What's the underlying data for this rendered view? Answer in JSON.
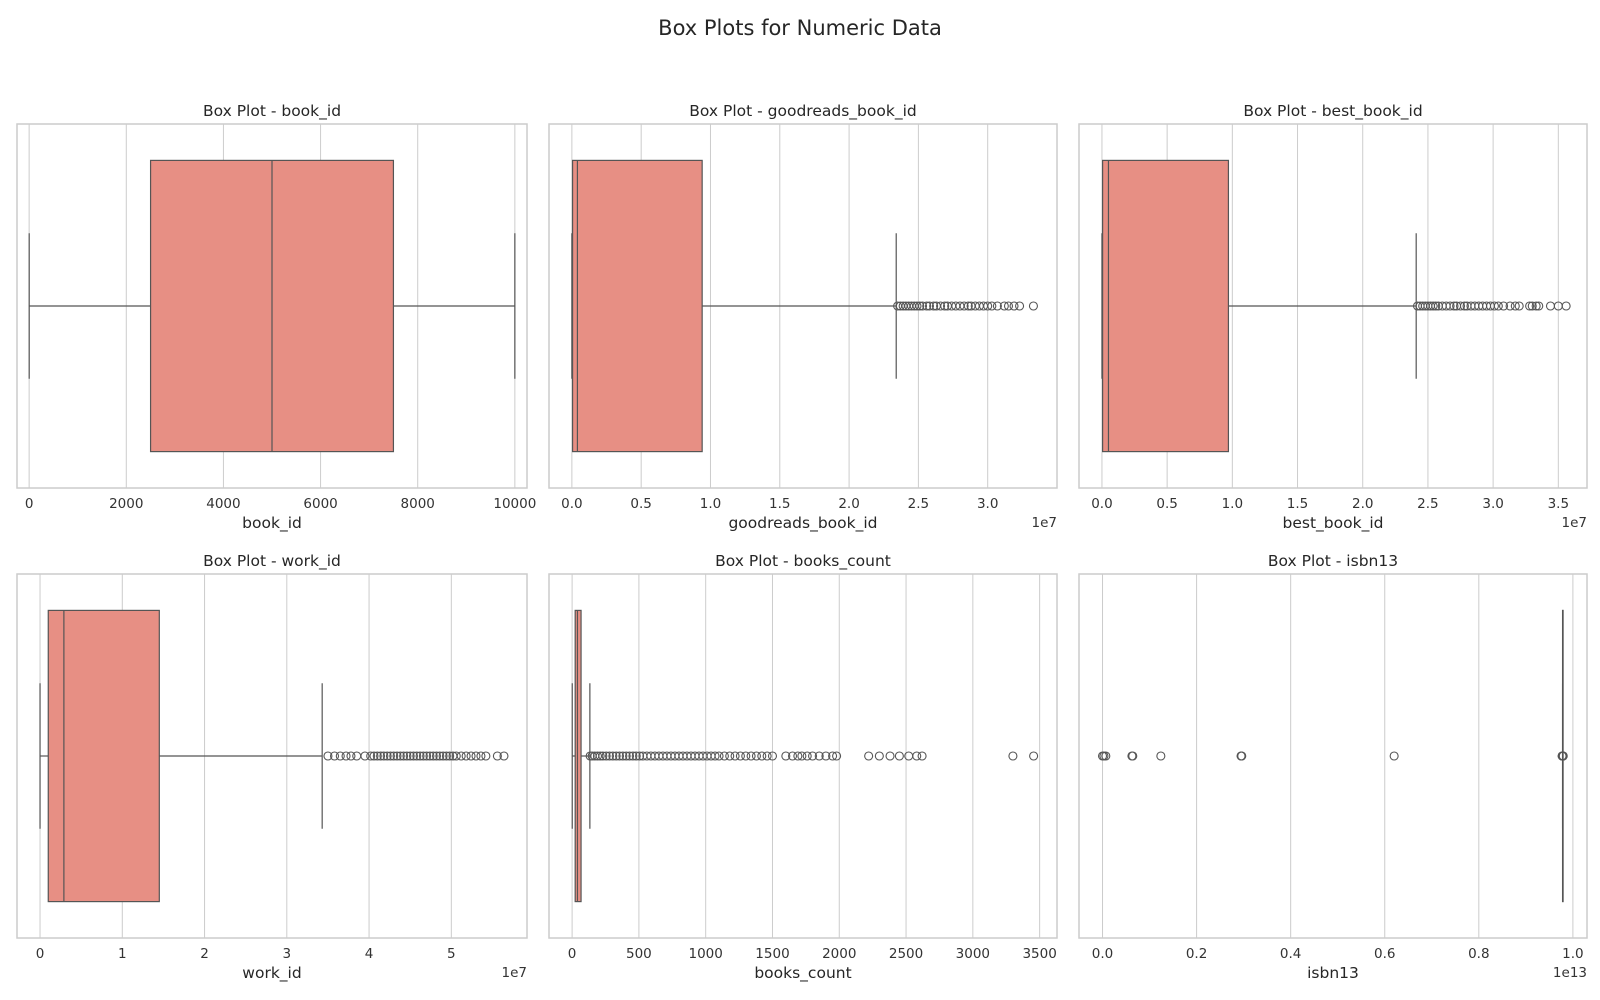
{
  "figure": {
    "title": "Box Plots for Numeric Data"
  },
  "colors": {
    "box_fill": "#e78f84",
    "line": "#555555",
    "grid": "#cccccc",
    "frame": "#cccccc",
    "flier_edge": "#555555"
  },
  "chart_data": [
    {
      "type": "box",
      "title": "Box Plot - book_id",
      "xlabel": "book_id",
      "offset_text": "",
      "xlim": [
        -250,
        10250
      ],
      "ticks": [
        0,
        2000,
        4000,
        6000,
        8000,
        10000
      ],
      "tick_labels": [
        "0",
        "2000",
        "4000",
        "6000",
        "8000",
        "10000"
      ],
      "whisker_low": 1,
      "q1": 2500,
      "median": 5000,
      "q3": 7500,
      "whisker_high": 10000,
      "outliers": []
    },
    {
      "type": "box",
      "title": "Box Plot - goodreads_book_id",
      "xlabel": "goodreads_book_id",
      "offset_text": "1e7",
      "xlim": [
        -0.165,
        3.5
      ],
      "ticks": [
        0,
        0.5,
        1.0,
        1.5,
        2.0,
        2.5,
        3.0
      ],
      "tick_labels": [
        "0.0",
        "0.5",
        "1.0",
        "1.5",
        "2.0",
        "2.5",
        "3.0"
      ],
      "whisker_low": 0.0,
      "q1": 0.005,
      "median": 0.04,
      "q3": 0.94,
      "whisker_high": 2.34,
      "outliers": [
        2.35,
        2.37,
        2.39,
        2.41,
        2.43,
        2.45,
        2.47,
        2.49,
        2.51,
        2.53,
        2.56,
        2.58,
        2.61,
        2.63,
        2.66,
        2.69,
        2.71,
        2.74,
        2.77,
        2.8,
        2.83,
        2.86,
        2.88,
        2.91,
        2.94,
        2.97,
        3.0,
        3.03,
        3.07,
        3.12,
        3.15,
        3.19,
        3.23,
        3.33
      ]
    },
    {
      "type": "box",
      "title": "Box Plot - best_book_id",
      "xlabel": "best_book_id",
      "offset_text": "1e7",
      "xlim": [
        -0.176,
        3.72
      ],
      "ticks": [
        0,
        0.5,
        1.0,
        1.5,
        2.0,
        2.5,
        3.0,
        3.5
      ],
      "tick_labels": [
        "0.0",
        "0.5",
        "1.0",
        "1.5",
        "2.0",
        "2.5",
        "3.0",
        "3.5"
      ],
      "whisker_low": 0.0,
      "q1": 0.005,
      "median": 0.05,
      "q3": 0.97,
      "whisker_high": 2.41,
      "outliers": [
        2.42,
        2.44,
        2.46,
        2.48,
        2.5,
        2.52,
        2.54,
        2.56,
        2.58,
        2.61,
        2.64,
        2.67,
        2.7,
        2.72,
        2.75,
        2.78,
        2.8,
        2.83,
        2.86,
        2.89,
        2.92,
        2.95,
        2.98,
        3.01,
        3.04,
        3.08,
        3.13,
        3.17,
        3.2,
        3.28,
        3.3,
        3.33,
        3.35,
        3.44,
        3.5,
        3.56
      ]
    },
    {
      "type": "box",
      "title": "Box Plot - work_id",
      "xlabel": "work_id",
      "offset_text": "1e7",
      "xlim": [
        -0.28,
        5.92
      ],
      "ticks": [
        0,
        1,
        2,
        3,
        4,
        5
      ],
      "tick_labels": [
        "0",
        "1",
        "2",
        "3",
        "4",
        "5"
      ],
      "whisker_low": 0.0,
      "q1": 0.1,
      "median": 0.29,
      "q3": 1.45,
      "whisker_high": 3.43,
      "outliers": [
        3.5,
        3.58,
        3.65,
        3.72,
        3.78,
        3.85,
        3.95,
        4.02,
        4.06,
        4.1,
        4.14,
        4.18,
        4.22,
        4.26,
        4.3,
        4.34,
        4.38,
        4.42,
        4.46,
        4.5,
        4.54,
        4.58,
        4.62,
        4.66,
        4.7,
        4.74,
        4.78,
        4.82,
        4.86,
        4.9,
        4.94,
        4.98,
        5.02,
        5.06,
        5.12,
        5.18,
        5.24,
        5.3,
        5.36,
        5.42,
        5.56,
        5.64
      ]
    },
    {
      "type": "box",
      "title": "Box Plot - books_count",
      "xlabel": "books_count",
      "offset_text": "",
      "xlim": [
        -173,
        3630
      ],
      "ticks": [
        0,
        500,
        1000,
        1500,
        2000,
        2500,
        3000,
        3500
      ],
      "tick_labels": [
        "0",
        "500",
        "1000",
        "1500",
        "2000",
        "2500",
        "3000",
        "3500"
      ],
      "whisker_low": 1,
      "q1": 23,
      "median": 40,
      "q3": 67,
      "whisker_high": 133,
      "outliers": [
        135,
        150,
        170,
        190,
        210,
        230,
        255,
        280,
        305,
        330,
        355,
        380,
        405,
        430,
        455,
        480,
        505,
        530,
        560,
        590,
        620,
        650,
        680,
        710,
        740,
        770,
        800,
        830,
        860,
        890,
        920,
        950,
        980,
        1010,
        1040,
        1070,
        1100,
        1140,
        1180,
        1220,
        1260,
        1300,
        1340,
        1380,
        1420,
        1460,
        1500,
        1600,
        1650,
        1690,
        1720,
        1760,
        1800,
        1850,
        1900,
        1950,
        1980,
        2220,
        2300,
        2380,
        2450,
        2520,
        2580,
        2620,
        3300,
        3455
      ]
    },
    {
      "type": "box",
      "title": "Box Plot - isbn13",
      "xlabel": "isbn13",
      "offset_text": "1e13",
      "xlim": [
        -0.05,
        1.03
      ],
      "ticks": [
        0,
        0.2,
        0.4,
        0.6,
        0.8,
        1.0
      ],
      "tick_labels": [
        "0.0",
        "0.2",
        "0.4",
        "0.6",
        "0.8",
        "1.0"
      ],
      "whisker_low": 0.9781,
      "q1": 0.9781,
      "median": 0.9781,
      "q3": 0.9781,
      "whisker_high": 0.9781,
      "outliers": [
        0.0,
        0.003,
        0.007,
        0.0625,
        0.0643,
        0.124,
        0.2945,
        0.2952,
        0.296,
        0.62,
        0.977,
        0.9775,
        0.978,
        0.9785,
        0.979,
        0.9795
      ]
    }
  ]
}
